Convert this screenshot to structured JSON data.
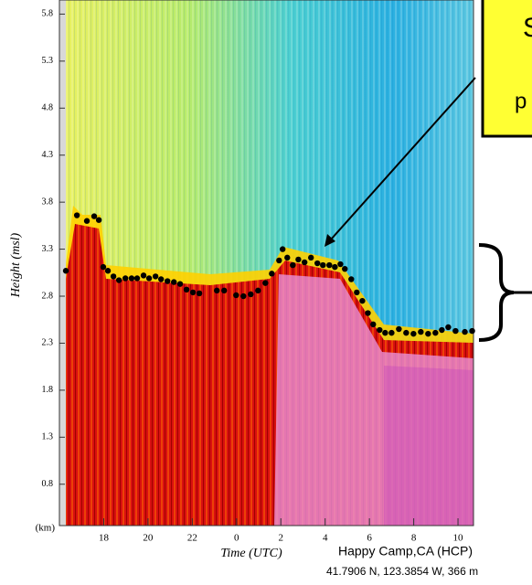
{
  "chart_data": {
    "type": "scatter",
    "x_label": "Time (UTC)",
    "y_label": "Height (msl)",
    "y_unit": "(km)",
    "xlim": [
      16,
      34.7
    ],
    "xticks": [
      {
        "value": 18,
        "label": "18"
      },
      {
        "value": 20,
        "label": "20"
      },
      {
        "value": 22,
        "label": "22"
      },
      {
        "value": 24,
        "label": "0"
      },
      {
        "value": 26,
        "label": "2"
      },
      {
        "value": 28,
        "label": "4"
      },
      {
        "value": 30,
        "label": "6"
      },
      {
        "value": 32,
        "label": "8"
      },
      {
        "value": 34,
        "label": "10"
      }
    ],
    "ylim": [
      0.36,
      5.95
    ],
    "yticks": [
      0.8,
      1.3,
      1.8,
      2.3,
      2.8,
      3.3,
      3.8,
      4.3,
      4.8,
      5.3,
      5.8
    ],
    "series": [
      {
        "color": "#000000",
        "x": [
          16.29,
          16.79,
          17.24,
          17.57,
          17.78,
          17.98,
          18.19,
          18.44,
          18.69,
          18.98,
          19.26,
          19.51,
          19.8,
          20.05,
          20.34,
          20.59,
          20.88,
          21.17,
          21.45,
          21.74,
          22.03,
          22.32,
          23.11,
          23.44,
          23.98,
          24.31,
          24.64,
          24.97,
          25.3,
          25.59,
          25.92,
          26.08,
          26.29,
          26.54,
          26.79,
          27.07,
          27.36,
          27.65,
          27.9,
          28.19,
          28.44,
          28.69,
          28.89,
          29.18,
          29.43,
          29.68,
          29.93,
          30.17,
          30.46,
          30.71,
          31.0,
          31.33,
          31.66,
          31.99,
          32.32,
          32.65,
          32.98,
          33.27,
          33.56,
          33.89,
          34.31,
          34.64
        ],
        "values": [
          3.07,
          3.66,
          3.6,
          3.65,
          3.61,
          3.11,
          3.07,
          3.01,
          2.97,
          2.99,
          2.99,
          2.99,
          3.02,
          2.99,
          3.01,
          2.98,
          2.96,
          2.95,
          2.93,
          2.87,
          2.84,
          2.83,
          2.86,
          2.86,
          2.81,
          2.8,
          2.82,
          2.86,
          2.94,
          3.04,
          3.18,
          3.3,
          3.21,
          3.13,
          3.19,
          3.16,
          3.21,
          3.15,
          3.13,
          3.13,
          3.11,
          3.14,
          3.09,
          2.98,
          2.84,
          2.75,
          2.62,
          2.5,
          2.44,
          2.41,
          2.41,
          2.45,
          2.41,
          2.4,
          2.42,
          2.4,
          2.41,
          2.44,
          2.47,
          2.43,
          2.42,
          2.43
        ]
      }
    ],
    "annotation": [
      "S",
      "p"
    ],
    "location": [
      "Happy Camp,CA (HCP)",
      "41.7906 N, 123.3854 W, 366 m"
    ]
  }
}
